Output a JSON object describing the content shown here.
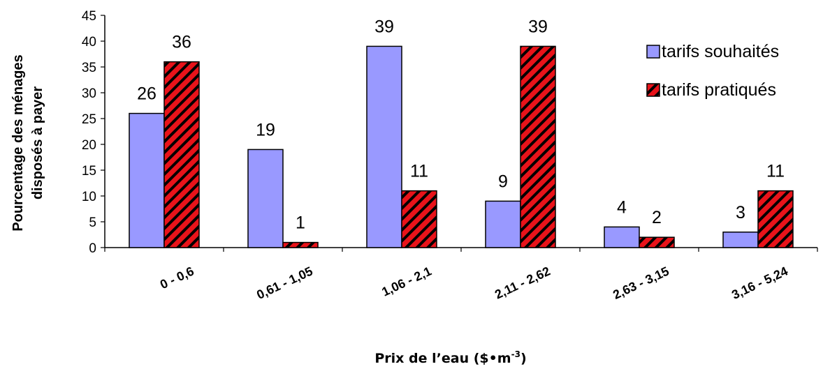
{
  "chart_data": {
    "type": "bar",
    "categories": [
      "0 - 0,6",
      "0,61 - 1,05",
      "1,06 - 2,1",
      "2,11 - 2,62",
      "2,63 - 3,15",
      "3,16 - 5,24"
    ],
    "series": [
      {
        "name": "tarifs souhaités",
        "values": [
          26,
          19,
          39,
          9,
          4,
          3
        ],
        "color": "#9999ff",
        "pattern": "solid"
      },
      {
        "name": "tarifs pratiqués",
        "values": [
          36,
          1,
          11,
          39,
          2,
          11
        ],
        "color": "#e8131a",
        "pattern": "diagonal-hatch"
      }
    ],
    "ylabel_line1": "Pourcentage des ménages",
    "ylabel_line2": "disposés à payer",
    "xlabel_text": "Prix de l’eau ($•m",
    "xlabel_sup": "-3",
    "xlabel_close": ")",
    "ylim": [
      0,
      45
    ],
    "yticks": [
      0,
      5,
      10,
      15,
      20,
      25,
      30,
      35,
      40,
      45
    ],
    "grid": false,
    "legend_position": "top-right"
  }
}
